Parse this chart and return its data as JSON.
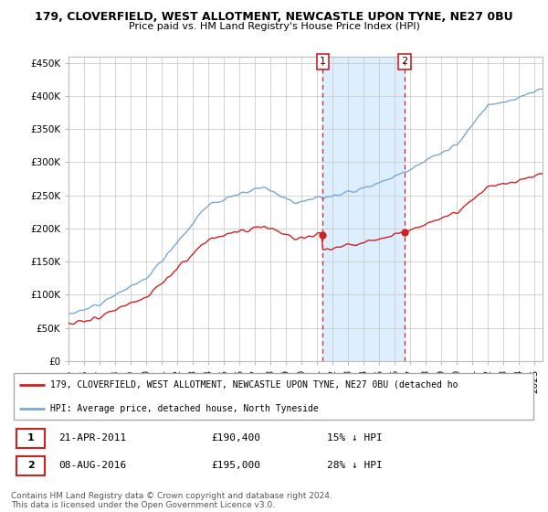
{
  "title1": "179, CLOVERFIELD, WEST ALLOTMENT, NEWCASTLE UPON TYNE, NE27 0BU",
  "title2": "Price paid vs. HM Land Registry's House Price Index (HPI)",
  "ytick_values": [
    0,
    50000,
    100000,
    150000,
    200000,
    250000,
    300000,
    350000,
    400000,
    450000
  ],
  "ylim": [
    0,
    460000
  ],
  "hpi_color": "#7aa8d4",
  "price_color": "#cc2222",
  "shading_color": "#ddeeff",
  "point1_year": 2011.29,
  "point1_price": 190400,
  "point2_year": 2016.58,
  "point2_price": 195000,
  "legend_line1": "179, CLOVERFIELD, WEST ALLOTMENT, NEWCASTLE UPON TYNE, NE27 0BU (detached ho",
  "legend_line2": "HPI: Average price, detached house, North Tyneside",
  "footer": "Contains HM Land Registry data © Crown copyright and database right 2024.\nThis data is licensed under the Open Government Licence v3.0.",
  "xlim_start": 1995,
  "xlim_end": 2025.5,
  "hpi_noise_std": 2500,
  "price_noise_std": 2000
}
